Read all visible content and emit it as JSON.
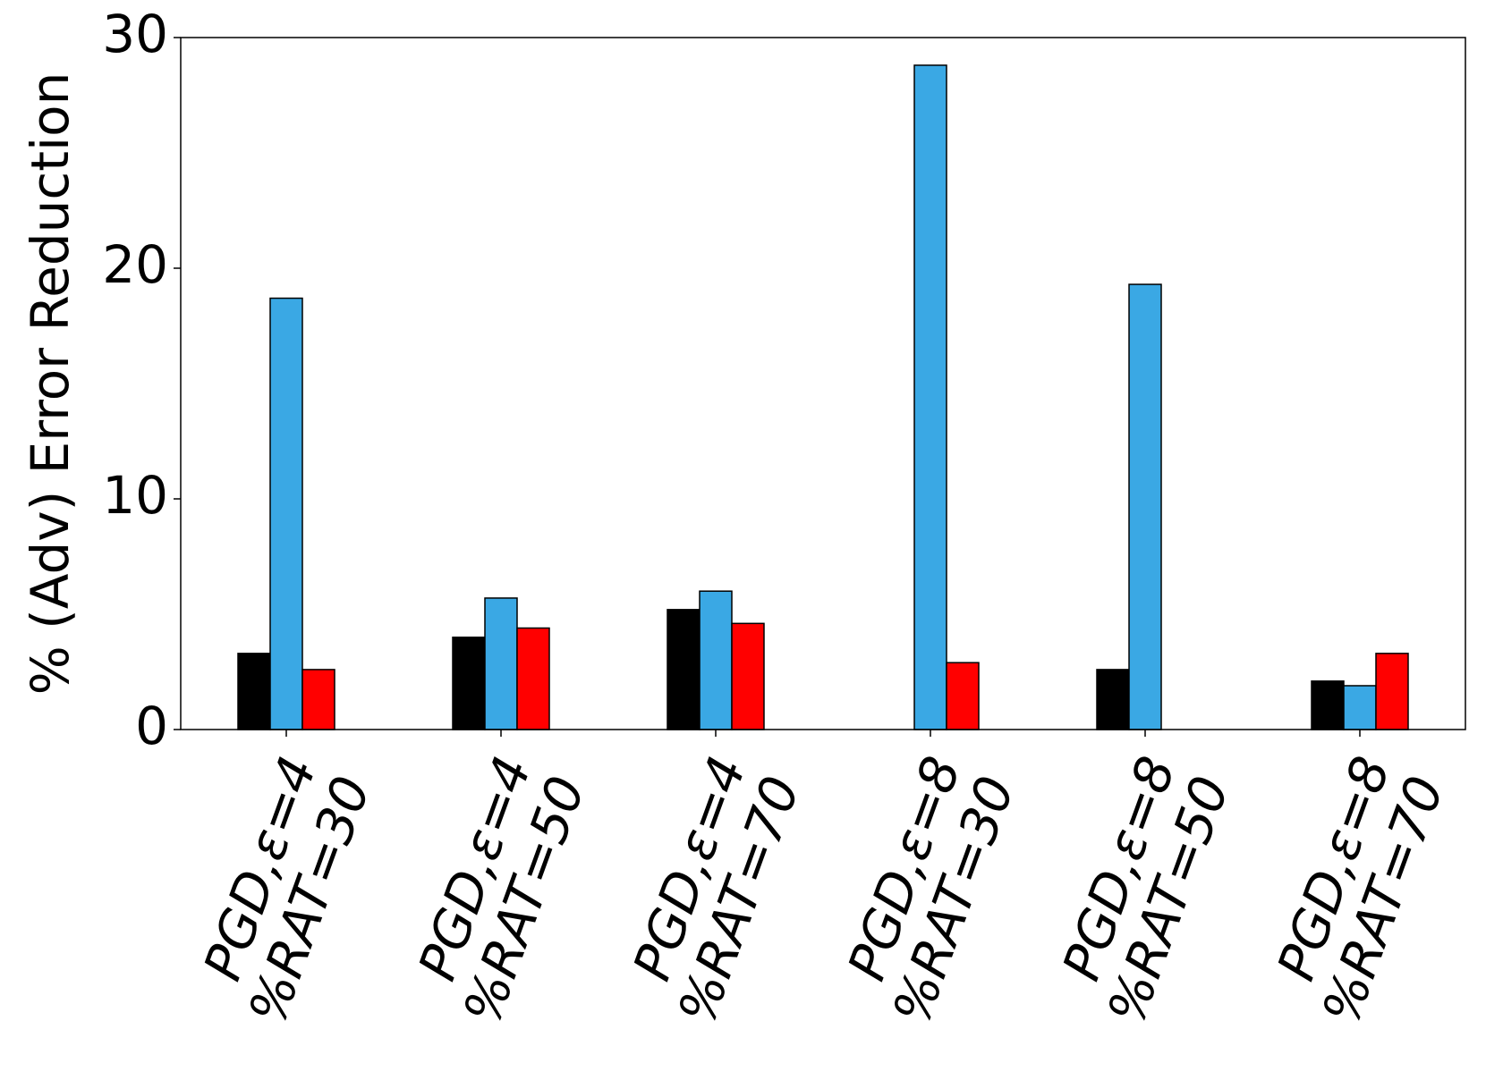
{
  "chart_data": {
    "type": "bar",
    "title": "",
    "xlabel": "",
    "ylabel": "% (Adv) Error Reduction",
    "ylim": [
      0,
      30
    ],
    "yticks": [
      "0",
      "10",
      "20",
      "30"
    ],
    "categories": [
      [
        "PGD,ε=4",
        "%RAT=30"
      ],
      [
        "PGD,ε=4",
        "%RAT=50"
      ],
      [
        "PGD,ε=4",
        "%RAT=70"
      ],
      [
        "PGD,ε=8",
        "%RAT=30"
      ],
      [
        "PGD,ε=8",
        "%RAT=50"
      ],
      [
        "PGD,ε=8",
        "%RAT=70"
      ]
    ],
    "series": [
      {
        "color": "#000000",
        "values": [
          3.3,
          4.0,
          5.2,
          0.0,
          2.6,
          2.1
        ]
      },
      {
        "color": "#3aa8e4",
        "values": [
          18.7,
          5.7,
          6.0,
          28.8,
          19.3,
          1.9
        ]
      },
      {
        "color": "#ff0000",
        "values": [
          2.6,
          4.4,
          4.6,
          2.9,
          0.0,
          3.3
        ]
      }
    ],
    "grid": false,
    "legend": "none"
  }
}
